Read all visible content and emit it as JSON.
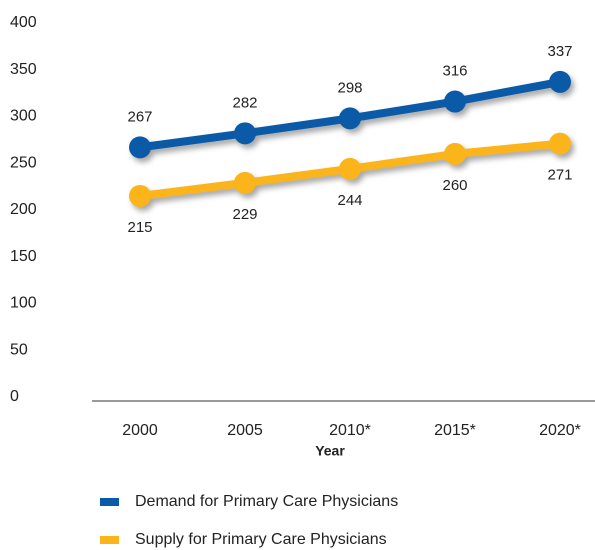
{
  "chart_data": {
    "type": "line",
    "x_label": "Year",
    "categories": [
      "2000",
      "2005",
      "2010*",
      "2015*",
      "2020*"
    ],
    "series": [
      {
        "name": "Demand for Primary Care Physicians",
        "color": "#0b5aa8",
        "values": [
          267,
          282,
          298,
          316,
          337
        ]
      },
      {
        "name": "Supply for Primary Care Physicians",
        "color": "#fbb41a",
        "values": [
          215,
          229,
          244,
          260,
          271
        ]
      }
    ],
    "ylim": [
      0,
      400
    ],
    "yticks": [
      0,
      50,
      100,
      150,
      200,
      250,
      300,
      350,
      400
    ],
    "grid": false,
    "legend": "bottom"
  }
}
